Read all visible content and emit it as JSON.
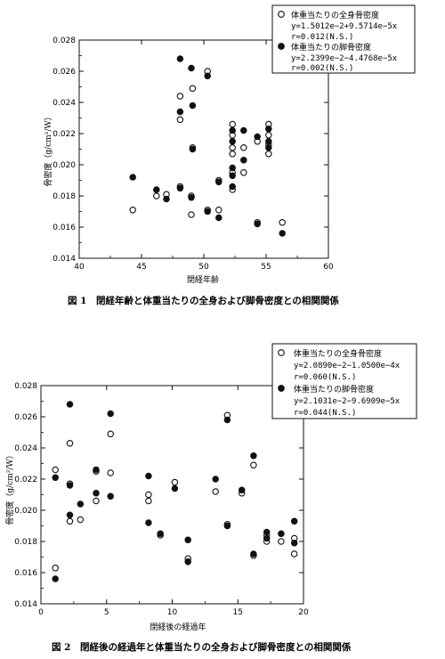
{
  "chart_data": [
    {
      "type": "scatter",
      "caption": "図 1　閉経年齢と体重当たりの全身および脚骨密度との相関関係",
      "xlabel": "閉経年齢",
      "ylabel": "骨密度（g/cm²/W）",
      "xlim": [
        40,
        60
      ],
      "ylim": [
        0.014,
        0.028
      ],
      "xticks": [
        "40",
        "45",
        "50",
        "55",
        "60"
      ],
      "yticks": [
        "0.014",
        "0.016",
        "0.018",
        "0.020",
        "0.022",
        "0.024",
        "0.026",
        "0.028"
      ],
      "legend_position": "top-right",
      "series": [
        {
          "name": "体重当たりの全身骨密度",
          "marker": "open-circle",
          "equation": "y=1.5012e−2+9.5714e−5x",
          "r": "r=0.012(N.S.)",
          "points": [
            [
              44.3,
              0.0171
            ],
            [
              46.2,
              0.018
            ],
            [
              47.0,
              0.0181
            ],
            [
              48.1,
              0.0186
            ],
            [
              48.1,
              0.0229
            ],
            [
              48.1,
              0.0244
            ],
            [
              49.0,
              0.0168
            ],
            [
              49.0,
              0.018
            ],
            [
              49.1,
              0.0211
            ],
            [
              49.1,
              0.0249
            ],
            [
              50.3,
              0.0171
            ],
            [
              50.3,
              0.026
            ],
            [
              51.2,
              0.0171
            ],
            [
              51.2,
              0.019
            ],
            [
              52.3,
              0.0184
            ],
            [
              52.3,
              0.0195
            ],
            [
              52.3,
              0.0207
            ],
            [
              52.3,
              0.0211
            ],
            [
              52.3,
              0.0219
            ],
            [
              52.3,
              0.0226
            ],
            [
              53.2,
              0.0195
            ],
            [
              53.2,
              0.0211
            ],
            [
              54.3,
              0.0163
            ],
            [
              54.3,
              0.0215
            ],
            [
              55.2,
              0.0207
            ],
            [
              55.2,
              0.0213
            ],
            [
              55.2,
              0.0219
            ],
            [
              55.2,
              0.0226
            ],
            [
              56.3,
              0.0163
            ]
          ]
        },
        {
          "name": "体重当たりの脚骨密度",
          "marker": "filled-circle",
          "equation": "y=2.2399e−2−4.4768e−5x",
          "r": "r=0.002(N.S.)",
          "points": [
            [
              44.3,
              0.0192
            ],
            [
              46.2,
              0.0184
            ],
            [
              47.0,
              0.0178
            ],
            [
              48.1,
              0.0185
            ],
            [
              48.1,
              0.0234
            ],
            [
              48.1,
              0.0268
            ],
            [
              49.0,
              0.0179
            ],
            [
              49.0,
              0.0262
            ],
            [
              49.1,
              0.021
            ],
            [
              49.1,
              0.0238
            ],
            [
              50.3,
              0.017
            ],
            [
              50.3,
              0.0257
            ],
            [
              51.2,
              0.0166
            ],
            [
              51.2,
              0.0189
            ],
            [
              52.3,
              0.0186
            ],
            [
              52.3,
              0.0193
            ],
            [
              52.3,
              0.0198
            ],
            [
              52.3,
              0.0215
            ],
            [
              52.3,
              0.0222
            ],
            [
              53.2,
              0.0203
            ],
            [
              53.2,
              0.0222
            ],
            [
              54.3,
              0.0162
            ],
            [
              54.3,
              0.0218
            ],
            [
              55.2,
              0.0211
            ],
            [
              55.2,
              0.0215
            ],
            [
              55.2,
              0.0223
            ],
            [
              56.3,
              0.0156
            ]
          ]
        }
      ]
    },
    {
      "type": "scatter",
      "caption": "図 2　閉経後の経過年と体重当たりの全身および脚骨密度との相関関係",
      "xlabel": "閉経後の経過年",
      "ylabel": "骨密度（g/cm²/W）",
      "xlim": [
        0,
        20
      ],
      "ylim": [
        0.014,
        0.028
      ],
      "xticks": [
        "0",
        "5",
        "10",
        "15",
        "20"
      ],
      "yticks": [
        "0.014",
        "0.016",
        "0.018",
        "0.020",
        "0.022",
        "0.024",
        "0.026",
        "0.028"
      ],
      "legend_position": "top-right",
      "series": [
        {
          "name": "体重当たりの全身骨密度",
          "marker": "open-circle",
          "equation": "y=2.0890e−2−1.0500e−4x",
          "r": "r=0.060(N.S.)",
          "points": [
            [
              1.1,
              0.0163
            ],
            [
              1.1,
              0.0226
            ],
            [
              2.2,
              0.0193
            ],
            [
              2.2,
              0.0217
            ],
            [
              2.2,
              0.0243
            ],
            [
              3.0,
              0.0194
            ],
            [
              4.2,
              0.0206
            ],
            [
              4.2,
              0.0225
            ],
            [
              5.3,
              0.0224
            ],
            [
              5.3,
              0.0249
            ],
            [
              8.2,
              0.0206
            ],
            [
              8.2,
              0.021
            ],
            [
              9.1,
              0.0184
            ],
            [
              10.2,
              0.0218
            ],
            [
              11.2,
              0.0169
            ],
            [
              13.3,
              0.0212
            ],
            [
              14.2,
              0.0191
            ],
            [
              14.2,
              0.0261
            ],
            [
              15.3,
              0.0211
            ],
            [
              16.2,
              0.0171
            ],
            [
              16.2,
              0.0229
            ],
            [
              17.2,
              0.018
            ],
            [
              17.2,
              0.0184
            ],
            [
              18.3,
              0.018
            ],
            [
              19.3,
              0.0172
            ],
            [
              19.3,
              0.0182
            ]
          ]
        },
        {
          "name": "体重当たりの脚骨密度",
          "marker": "filled-circle",
          "equation": "y=2.1031e−2−9.6909e−5x",
          "r": "r=0.044(N.S.)",
          "points": [
            [
              1.1,
              0.0156
            ],
            [
              1.1,
              0.0221
            ],
            [
              2.2,
              0.0197
            ],
            [
              2.2,
              0.0216
            ],
            [
              2.2,
              0.0268
            ],
            [
              3.0,
              0.0204
            ],
            [
              4.2,
              0.0211
            ],
            [
              4.2,
              0.0226
            ],
            [
              5.3,
              0.0209
            ],
            [
              5.3,
              0.0262
            ],
            [
              8.2,
              0.0192
            ],
            [
              8.2,
              0.0222
            ],
            [
              9.1,
              0.0185
            ],
            [
              10.2,
              0.0214
            ],
            [
              11.2,
              0.0167
            ],
            [
              11.2,
              0.0181
            ],
            [
              13.3,
              0.022
            ],
            [
              14.2,
              0.019
            ],
            [
              14.2,
              0.0258
            ],
            [
              15.3,
              0.0213
            ],
            [
              16.2,
              0.0172
            ],
            [
              16.2,
              0.0235
            ],
            [
              17.2,
              0.0182
            ],
            [
              17.2,
              0.0186
            ],
            [
              18.3,
              0.0185
            ],
            [
              19.3,
              0.0179
            ],
            [
              19.3,
              0.0193
            ]
          ]
        }
      ]
    }
  ]
}
